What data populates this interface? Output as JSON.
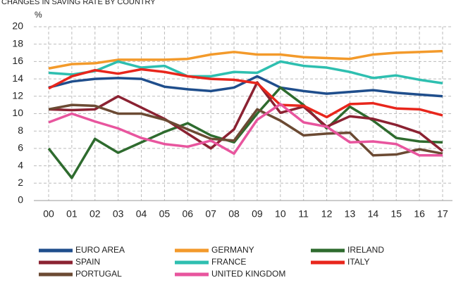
{
  "chart_data": {
    "type": "line",
    "title": "CHANGES IN SAVING RATE BY COUNTRY",
    "y_label": "%",
    "categories": [
      "00",
      "01",
      "02",
      "03",
      "04",
      "05",
      "06",
      "07",
      "08",
      "09",
      "10",
      "11",
      "12",
      "13",
      "14",
      "15",
      "16",
      "17"
    ],
    "ylim": [
      0,
      20
    ],
    "yticks": [
      0,
      2,
      4,
      6,
      8,
      10,
      12,
      14,
      16,
      18,
      20
    ],
    "grid": true,
    "series": [
      {
        "name": "EURO AREA",
        "color": "#1f4e8c",
        "values": [
          13,
          13.7,
          14,
          14.1,
          14,
          13.1,
          12.8,
          12.6,
          13,
          14.3,
          13,
          12.6,
          12.3,
          12.5,
          12.7,
          12.4,
          12.2,
          12
        ]
      },
      {
        "name": "GERMANY",
        "color": "#f39a2b",
        "values": [
          15.2,
          15.7,
          15.8,
          16.2,
          16.2,
          16.2,
          16.3,
          16.8,
          17.1,
          16.8,
          16.8,
          16.5,
          16.4,
          16.3,
          16.8,
          17,
          17.1,
          17.2
        ]
      },
      {
        "name": "IRELAND",
        "color": "#2e6b2e",
        "values": [
          6,
          2.6,
          7.1,
          5.5,
          6.7,
          7.9,
          8.9,
          7.5,
          6.7,
          10,
          13,
          11,
          8.3,
          10.8,
          9.2,
          7.2,
          6.8,
          6.7
        ]
      },
      {
        "name": "SPAIN",
        "color": "#8b2232",
        "values": [
          10.5,
          10.4,
          10.5,
          12,
          10.7,
          9.4,
          7.7,
          6,
          8.2,
          13.6,
          10.1,
          10.8,
          8.5,
          9.7,
          9.4,
          8.7,
          7.8,
          5.7
        ]
      },
      {
        "name": "FRANCE",
        "color": "#2ebfb0",
        "values": [
          14.7,
          14.5,
          14.9,
          16,
          15.3,
          15.5,
          14.3,
          14.3,
          14.8,
          14.7,
          16,
          15.5,
          15.3,
          14.8,
          14.1,
          14.4,
          13.9,
          13.5
        ]
      },
      {
        "name": "ITALY",
        "color": "#e8261c",
        "values": [
          12.9,
          14.3,
          15,
          14.6,
          15.1,
          14.8,
          14.3,
          14,
          13.9,
          13.5,
          11,
          10.9,
          9.6,
          11.1,
          11.2,
          10.6,
          10.5,
          9.8
        ]
      },
      {
        "name": "PORTUGAL",
        "color": "#6b4a33",
        "values": [
          10.5,
          11,
          10.9,
          10,
          10,
          9.3,
          8.2,
          7.1,
          6.9,
          10.5,
          9.2,
          7.5,
          7.7,
          7.8,
          5.2,
          5.3,
          5.9,
          5.4
        ]
      },
      {
        "name": "UNITED KINGDOM",
        "color": "#e8559e",
        "values": [
          9,
          10,
          9.1,
          8.3,
          7.2,
          6.5,
          6.2,
          6.9,
          5.4,
          9.3,
          11.1,
          9,
          8.5,
          6.7,
          6.8,
          6.5,
          5.2,
          5.2
        ]
      }
    ]
  }
}
